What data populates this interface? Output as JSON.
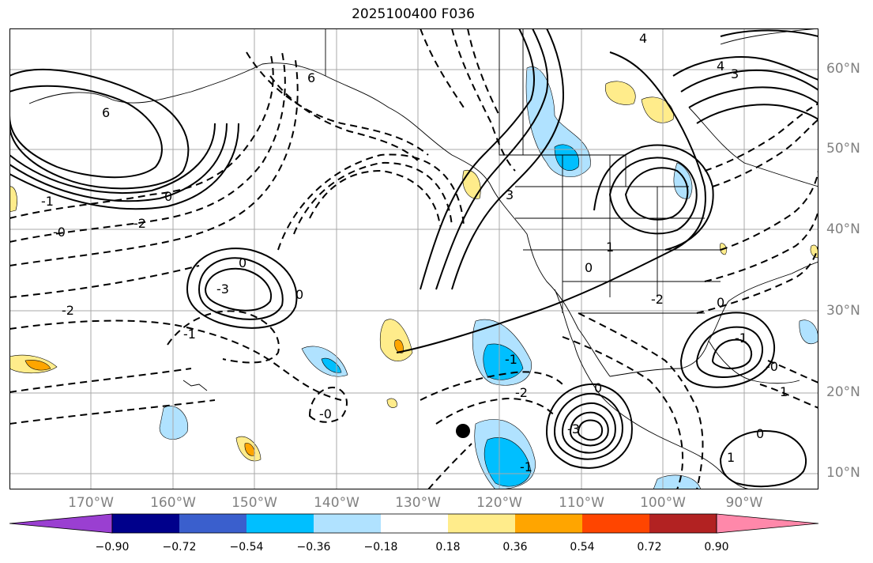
{
  "title": "2025100400 F036",
  "lat_labels": [
    "60°N",
    "50°N",
    "40°N",
    "30°N",
    "20°N",
    "10°N"
  ],
  "lon_labels": [
    "170°W",
    "160°W",
    "150°W",
    "140°W",
    "130°W",
    "120°W",
    "110°W",
    "100°W",
    "90°W"
  ],
  "colorbar": {
    "ticks": [
      "−0.90",
      "−0.72",
      "−0.54",
      "−0.36",
      "−0.18",
      "0.18",
      "0.36",
      "0.54",
      "0.72",
      "0.90"
    ],
    "colors": [
      "#9a3fd1",
      "#00008b",
      "#3a5fcd",
      "#00bfff",
      "#b0e2ff",
      "#ffffff",
      "#ffec8b",
      "#ffa500",
      "#ff4500",
      "#b22222",
      "#ff88aa"
    ]
  },
  "contour_labels": [
    "6",
    "0",
    "-1",
    "-2",
    "-0",
    "0",
    "-3",
    "0",
    "-2",
    "-1",
    "-0",
    "4",
    "4",
    "3",
    "0",
    "1",
    "-1",
    "-2",
    "0",
    "-2",
    "-1",
    "0",
    "-0",
    "1",
    "-3",
    "0",
    "-1",
    "3",
    "6",
    "1"
  ],
  "marker": "station-dot"
}
